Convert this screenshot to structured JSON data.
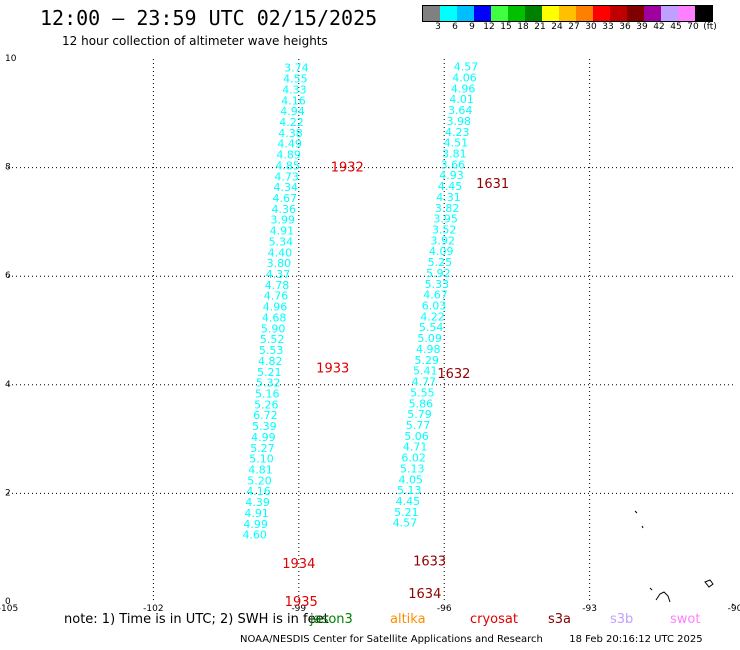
{
  "header": {
    "title": "12:00 – 23:59 UTC 02/15/2025",
    "subtitle": "12 hour collection of altimeter wave heights"
  },
  "colorbar": {
    "colors": [
      "#808080",
      "#00ffff",
      "#00bfff",
      "#0000ff",
      "#40ff40",
      "#00c000",
      "#008000",
      "#ffff00",
      "#ffc000",
      "#ff8000",
      "#ff0000",
      "#c00000",
      "#800000",
      "#a000a0",
      "#c0a0ff",
      "#ff80ff",
      "#000000"
    ],
    "labels": [
      "3",
      "6",
      "9",
      "12",
      "15",
      "18",
      "21",
      "24",
      "27",
      "30",
      "33",
      "36",
      "39",
      "42",
      "45",
      "70",
      "(ft)"
    ]
  },
  "chart_data": {
    "type": "scatter",
    "xlim": [
      -105,
      -90
    ],
    "ylim": [
      0,
      10
    ],
    "x_ticks": [
      "-105",
      "-102",
      "-99",
      "-96",
      "-93",
      "-90"
    ],
    "y_ticks": [
      "0",
      "2",
      "4",
      "6",
      "8",
      "10"
    ],
    "grid": true,
    "tracks": [
      {
        "color": "#00ffff",
        "points": [
          {
            "x": -99.05,
            "y": 9.84,
            "v": "3.74"
          },
          {
            "x": -99.07,
            "y": 9.64,
            "v": "4.55"
          },
          {
            "x": -99.09,
            "y": 9.44,
            "v": "4.33"
          },
          {
            "x": -99.11,
            "y": 9.24,
            "v": "4.16"
          },
          {
            "x": -99.13,
            "y": 9.04,
            "v": "4.94"
          },
          {
            "x": -99.15,
            "y": 8.84,
            "v": "4.22"
          },
          {
            "x": -99.17,
            "y": 8.64,
            "v": "4.38"
          },
          {
            "x": -99.19,
            "y": 8.44,
            "v": "4.49"
          },
          {
            "x": -99.21,
            "y": 8.24,
            "v": "4.89"
          },
          {
            "x": -99.23,
            "y": 8.04,
            "v": "4.85"
          },
          {
            "x": -99.25,
            "y": 7.84,
            "v": "4.73"
          },
          {
            "x": -99.27,
            "y": 7.64,
            "v": "4.34"
          },
          {
            "x": -99.29,
            "y": 7.44,
            "v": "4.67"
          },
          {
            "x": -99.31,
            "y": 7.24,
            "v": "4.36"
          },
          {
            "x": -99.33,
            "y": 7.04,
            "v": "3.99"
          },
          {
            "x": -99.35,
            "y": 6.84,
            "v": "4.91"
          },
          {
            "x": -99.37,
            "y": 6.64,
            "v": "5.34"
          },
          {
            "x": -99.39,
            "y": 6.44,
            "v": "4.40"
          },
          {
            "x": -99.41,
            "y": 6.24,
            "v": "3.80"
          },
          {
            "x": -99.43,
            "y": 6.04,
            "v": "4.37"
          },
          {
            "x": -99.45,
            "y": 5.84,
            "v": "4.78"
          },
          {
            "x": -99.47,
            "y": 5.64,
            "v": "4.76"
          },
          {
            "x": -99.49,
            "y": 5.44,
            "v": "4.96"
          },
          {
            "x": -99.51,
            "y": 5.24,
            "v": "4.68"
          },
          {
            "x": -99.53,
            "y": 5.04,
            "v": "5.90"
          },
          {
            "x": -99.55,
            "y": 4.84,
            "v": "5.52"
          },
          {
            "x": -99.57,
            "y": 4.64,
            "v": "5.53"
          },
          {
            "x": -99.59,
            "y": 4.44,
            "v": "4.82"
          },
          {
            "x": -99.61,
            "y": 4.24,
            "v": "5.21"
          },
          {
            "x": -99.63,
            "y": 4.04,
            "v": "5.32"
          },
          {
            "x": -99.65,
            "y": 3.84,
            "v": "5.16"
          },
          {
            "x": -99.67,
            "y": 3.64,
            "v": "5.26"
          },
          {
            "x": -99.69,
            "y": 3.44,
            "v": "6.72"
          },
          {
            "x": -99.71,
            "y": 3.24,
            "v": "5.39"
          },
          {
            "x": -99.73,
            "y": 3.04,
            "v": "4.99"
          },
          {
            "x": -99.75,
            "y": 2.84,
            "v": "5.27"
          },
          {
            "x": -99.77,
            "y": 2.64,
            "v": "5.10"
          },
          {
            "x": -99.79,
            "y": 2.44,
            "v": "4.81"
          },
          {
            "x": -99.81,
            "y": 2.24,
            "v": "5.20"
          },
          {
            "x": -99.83,
            "y": 2.04,
            "v": "4.16"
          },
          {
            "x": -99.85,
            "y": 1.84,
            "v": "4.39"
          },
          {
            "x": -99.87,
            "y": 1.64,
            "v": "4.91"
          },
          {
            "x": -99.89,
            "y": 1.44,
            "v": "4.99"
          },
          {
            "x": -99.91,
            "y": 1.24,
            "v": "4.60"
          }
        ]
      },
      {
        "color": "#00ffff",
        "points": [
          {
            "x": -95.55,
            "y": 9.86,
            "v": "4.57"
          },
          {
            "x": -95.58,
            "y": 9.66,
            "v": "4.06"
          },
          {
            "x": -95.61,
            "y": 9.46,
            "v": "4.96"
          },
          {
            "x": -95.64,
            "y": 9.26,
            "v": "4.01"
          },
          {
            "x": -95.67,
            "y": 9.06,
            "v": "3.64"
          },
          {
            "x": -95.7,
            "y": 8.86,
            "v": "3.98"
          },
          {
            "x": -95.73,
            "y": 8.66,
            "v": "4.23"
          },
          {
            "x": -95.76,
            "y": 8.46,
            "v": "4.51"
          },
          {
            "x": -95.79,
            "y": 8.26,
            "v": "3.81"
          },
          {
            "x": -95.82,
            "y": 8.06,
            "v": "3.66"
          },
          {
            "x": -95.85,
            "y": 7.86,
            "v": "4.93"
          },
          {
            "x": -95.88,
            "y": 7.66,
            "v": "4.45"
          },
          {
            "x": -95.91,
            "y": 7.46,
            "v": "4.31"
          },
          {
            "x": -95.94,
            "y": 7.26,
            "v": "3.82"
          },
          {
            "x": -95.97,
            "y": 7.06,
            "v": "3.95"
          },
          {
            "x": -96.0,
            "y": 6.86,
            "v": "3.52"
          },
          {
            "x": -96.03,
            "y": 6.66,
            "v": "3.92"
          },
          {
            "x": -96.06,
            "y": 6.46,
            "v": "4.09"
          },
          {
            "x": -96.09,
            "y": 6.26,
            "v": "5.25"
          },
          {
            "x": -96.12,
            "y": 6.06,
            "v": "5.92"
          },
          {
            "x": -96.15,
            "y": 5.86,
            "v": "5.33"
          },
          {
            "x": -96.18,
            "y": 5.66,
            "v": "4.67"
          },
          {
            "x": -96.21,
            "y": 5.46,
            "v": "6.03"
          },
          {
            "x": -96.24,
            "y": 5.26,
            "v": "4.22"
          },
          {
            "x": -96.27,
            "y": 5.06,
            "v": "5.54"
          },
          {
            "x": -96.3,
            "y": 4.86,
            "v": "5.09"
          },
          {
            "x": -96.33,
            "y": 4.66,
            "v": "4.98"
          },
          {
            "x": -96.36,
            "y": 4.46,
            "v": "5.29"
          },
          {
            "x": -96.39,
            "y": 4.26,
            "v": "5.41"
          },
          {
            "x": -96.42,
            "y": 4.06,
            "v": "4.77"
          },
          {
            "x": -96.45,
            "y": 3.86,
            "v": "5.55"
          },
          {
            "x": -96.48,
            "y": 3.66,
            "v": "5.86"
          },
          {
            "x": -96.51,
            "y": 3.46,
            "v": "5.79"
          },
          {
            "x": -96.54,
            "y": 3.26,
            "v": "5.77"
          },
          {
            "x": -96.57,
            "y": 3.06,
            "v": "5.06"
          },
          {
            "x": -96.6,
            "y": 2.86,
            "v": "4.71"
          },
          {
            "x": -96.63,
            "y": 2.66,
            "v": "6.02"
          },
          {
            "x": -96.66,
            "y": 2.46,
            "v": "5.13"
          },
          {
            "x": -96.69,
            "y": 2.26,
            "v": "4.05"
          },
          {
            "x": -96.72,
            "y": 2.06,
            "v": "5.13"
          },
          {
            "x": -96.75,
            "y": 1.86,
            "v": "4.45"
          },
          {
            "x": -96.78,
            "y": 1.66,
            "v": "5.21"
          },
          {
            "x": -96.81,
            "y": 1.46,
            "v": "4.57"
          }
        ]
      }
    ],
    "time_labels": [
      {
        "x": -98.0,
        "y": 8.0,
        "text": "1932",
        "color": "#e00000"
      },
      {
        "x": -95.0,
        "y": 7.7,
        "text": "1631",
        "color": "#900000"
      },
      {
        "x": -98.3,
        "y": 4.3,
        "text": "1933",
        "color": "#e00000"
      },
      {
        "x": -95.8,
        "y": 4.2,
        "text": "1632",
        "color": "#900000"
      },
      {
        "x": -99.0,
        "y": 0.7,
        "text": "1934",
        "color": "#e00000"
      },
      {
        "x": -96.3,
        "y": 0.75,
        "text": "1633",
        "color": "#900000"
      },
      {
        "x": -98.95,
        "y": 0.0,
        "text": "1935",
        "color": "#e00000"
      },
      {
        "x": -96.4,
        "y": 0.15,
        "text": "1634",
        "color": "#900000"
      }
    ]
  },
  "note": "note: 1) Time is in UTC; 2) SWH is in feet",
  "legend": [
    {
      "label": "jason3",
      "color": "#008000"
    },
    {
      "label": "altika",
      "color": "#ff8c00"
    },
    {
      "label": "cryosat",
      "color": "#e00000"
    },
    {
      "label": "s3a",
      "color": "#800000"
    },
    {
      "label": "s3b",
      "color": "#c0a0ff"
    },
    {
      "label": "swot",
      "color": "#ff80ff"
    }
  ],
  "footer": {
    "credit": "NOAA/NESDIS Center for Satellite Applications and Research",
    "timestamp": "18 Feb 20:16:12 UTC 2025"
  }
}
